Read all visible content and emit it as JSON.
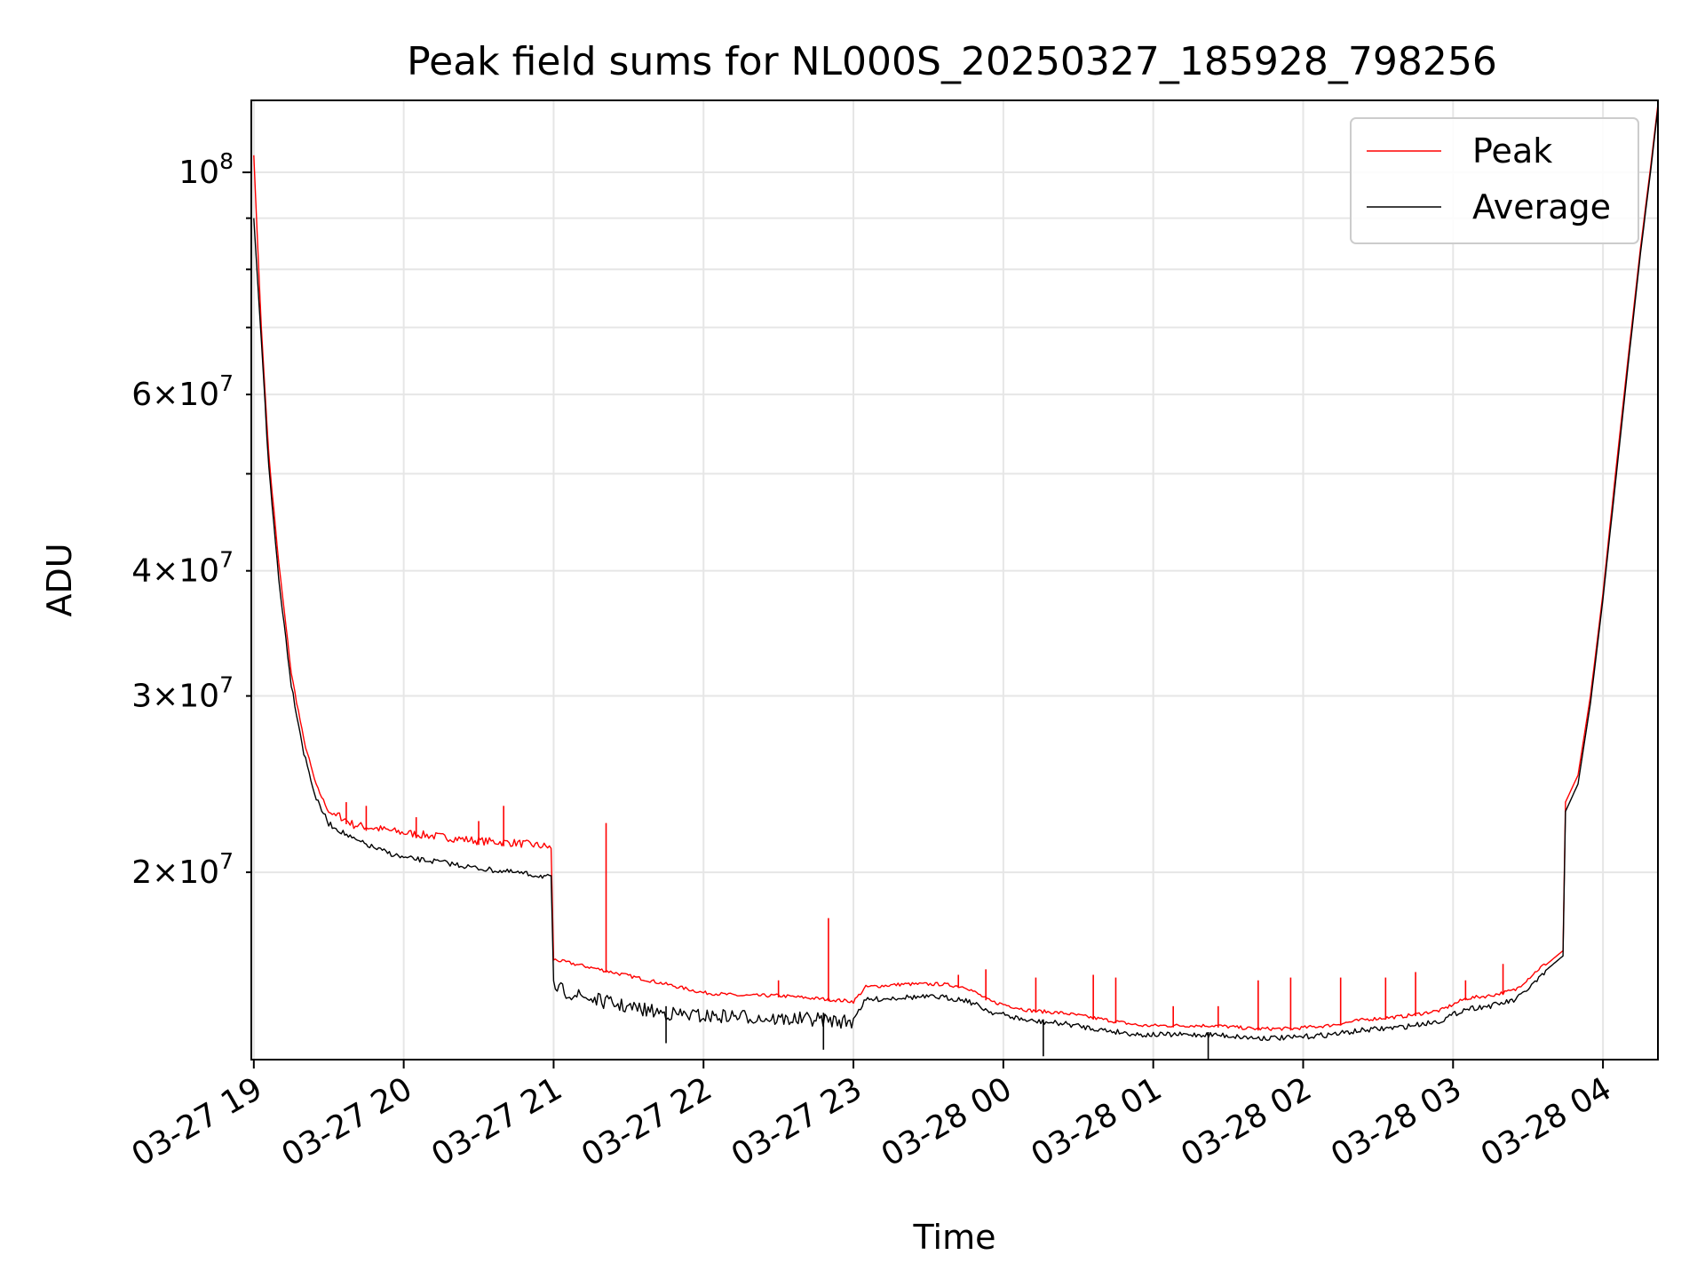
{
  "chart_data": {
    "type": "line",
    "title": "Peak field sums for NL000S_20250327_185928_798256",
    "xlabel": "Time",
    "ylabel": "ADU",
    "x_scale": "time",
    "y_scale": "log",
    "xlim": [
      "2025-03-27 18:59",
      "2025-03-28 04:22"
    ],
    "ylim": [
      13000000,
      118000000
    ],
    "grid": true,
    "legend_position": "upper right",
    "x_ticks": [
      {
        "t": "2025-03-27 19:00",
        "label": "03-27 19"
      },
      {
        "t": "2025-03-27 20:00",
        "label": "03-27 20"
      },
      {
        "t": "2025-03-27 21:00",
        "label": "03-27 21"
      },
      {
        "t": "2025-03-27 22:00",
        "label": "03-27 22"
      },
      {
        "t": "2025-03-27 23:00",
        "label": "03-27 23"
      },
      {
        "t": "2025-03-28 00:00",
        "label": "03-28 00"
      },
      {
        "t": "2025-03-28 01:00",
        "label": "03-28 01"
      },
      {
        "t": "2025-03-28 02:00",
        "label": "03-28 02"
      },
      {
        "t": "2025-03-28 03:00",
        "label": "03-28 03"
      },
      {
        "t": "2025-03-28 04:00",
        "label": "03-28 04"
      }
    ],
    "y_major_ticks": [
      {
        "value": 100000000,
        "base": "10",
        "exp": "8"
      }
    ],
    "y_minor_labeled_ticks": [
      {
        "value": 20000000,
        "mant": "2",
        "base": "10",
        "exp": "7"
      },
      {
        "value": 30000000,
        "mant": "3",
        "base": "10",
        "exp": "7"
      },
      {
        "value": 40000000,
        "mant": "4",
        "base": "10",
        "exp": "7"
      },
      {
        "value": 60000000,
        "mant": "6",
        "base": "10",
        "exp": "7"
      }
    ],
    "y_minor_unlabeled_ticks": [
      50000000,
      70000000,
      80000000,
      90000000
    ],
    "series": [
      {
        "name": "Peak",
        "color": "#ff0000",
        "points": [
          [
            "2025-03-27 19:00",
            104000000
          ],
          [
            "2025-03-27 19:03",
            70000000
          ],
          [
            "2025-03-27 19:06",
            52000000
          ],
          [
            "2025-03-27 19:10",
            40500000
          ],
          [
            "2025-03-27 19:15",
            31500000
          ],
          [
            "2025-03-27 19:20",
            27000000
          ],
          [
            "2025-03-27 19:25",
            24300000
          ],
          [
            "2025-03-27 19:30",
            22900000
          ],
          [
            "2025-03-27 19:40",
            22100000
          ],
          [
            "2025-03-27 19:50",
            21900000
          ],
          [
            "2025-03-27 20:00",
            21700000
          ],
          [
            "2025-03-27 20:15",
            21500000
          ],
          [
            "2025-03-27 20:30",
            21300000
          ],
          [
            "2025-03-27 20:45",
            21200000
          ],
          [
            "2025-03-27 20:59",
            21000000
          ],
          [
            "2025-03-27 21:00",
            16300000
          ],
          [
            "2025-03-27 21:10",
            16100000
          ],
          [
            "2025-03-27 21:20",
            15900000
          ],
          [
            "2025-03-27 21:30",
            15700000
          ],
          [
            "2025-03-27 21:45",
            15400000
          ],
          [
            "2025-03-27 22:00",
            15100000
          ],
          [
            "2025-03-27 22:15",
            15000000
          ],
          [
            "2025-03-27 22:30",
            15000000
          ],
          [
            "2025-03-27 22:45",
            14900000
          ],
          [
            "2025-03-27 23:00",
            14800000
          ],
          [
            "2025-03-27 23:05",
            15300000
          ],
          [
            "2025-03-27 23:20",
            15400000
          ],
          [
            "2025-03-27 23:35",
            15400000
          ],
          [
            "2025-03-27 23:45",
            15300000
          ],
          [
            "2025-03-27 23:55",
            14800000
          ],
          [
            "2025-03-28 00:10",
            14500000
          ],
          [
            "2025-03-28 00:25",
            14400000
          ],
          [
            "2025-03-28 00:40",
            14200000
          ],
          [
            "2025-03-28 00:55",
            14000000
          ],
          [
            "2025-03-28 01:10",
            14000000
          ],
          [
            "2025-03-28 01:25",
            14000000
          ],
          [
            "2025-03-28 01:40",
            13900000
          ],
          [
            "2025-03-28 01:55",
            13900000
          ],
          [
            "2025-03-28 02:10",
            14000000
          ],
          [
            "2025-03-28 02:25",
            14200000
          ],
          [
            "2025-03-28 02:40",
            14300000
          ],
          [
            "2025-03-28 02:55",
            14500000
          ],
          [
            "2025-03-28 03:05",
            14900000
          ],
          [
            "2025-03-28 03:15",
            15000000
          ],
          [
            "2025-03-28 03:25",
            15200000
          ],
          [
            "2025-03-28 03:35",
            16000000
          ],
          [
            "2025-03-28 03:44",
            16700000
          ],
          [
            "2025-03-28 03:45",
            23500000
          ],
          [
            "2025-03-28 03:50",
            25000000
          ],
          [
            "2025-03-28 03:55",
            30000000
          ],
          [
            "2025-03-28 04:00",
            38000000
          ],
          [
            "2025-03-28 04:05",
            50000000
          ],
          [
            "2025-03-28 04:10",
            65000000
          ],
          [
            "2025-03-28 04:15",
            84000000
          ],
          [
            "2025-03-28 04:19",
            101000000
          ],
          [
            "2025-03-28 04:22",
            117000000
          ]
        ]
      },
      {
        "name": "Average",
        "color": "#000000",
        "points": [
          [
            "2025-03-27 19:00",
            90000000
          ],
          [
            "2025-03-27 19:03",
            68000000
          ],
          [
            "2025-03-27 19:06",
            51000000
          ],
          [
            "2025-03-27 19:10",
            39500000
          ],
          [
            "2025-03-27 19:15",
            31000000
          ],
          [
            "2025-03-27 19:20",
            26500000
          ],
          [
            "2025-03-27 19:25",
            23800000
          ],
          [
            "2025-03-27 19:30",
            22500000
          ],
          [
            "2025-03-27 19:40",
            21700000
          ],
          [
            "2025-03-27 19:50",
            21200000
          ],
          [
            "2025-03-27 20:00",
            20800000
          ],
          [
            "2025-03-27 20:15",
            20600000
          ],
          [
            "2025-03-27 20:30",
            20300000
          ],
          [
            "2025-03-27 20:45",
            20100000
          ],
          [
            "2025-03-27 20:59",
            19900000
          ],
          [
            "2025-03-27 21:00",
            15600000
          ],
          [
            "2025-03-27 21:10",
            15300000
          ],
          [
            "2025-03-27 21:20",
            15100000
          ],
          [
            "2025-03-27 21:30",
            14900000
          ],
          [
            "2025-03-27 21:45",
            14700000
          ],
          [
            "2025-03-27 22:00",
            14600000
          ],
          [
            "2025-03-27 22:15",
            14600000
          ],
          [
            "2025-03-27 22:30",
            14500000
          ],
          [
            "2025-03-27 22:45",
            14500000
          ],
          [
            "2025-03-27 23:00",
            14400000
          ],
          [
            "2025-03-27 23:05",
            15000000
          ],
          [
            "2025-03-27 23:20",
            15100000
          ],
          [
            "2025-03-27 23:35",
            15100000
          ],
          [
            "2025-03-27 23:45",
            15000000
          ],
          [
            "2025-03-27 23:55",
            14600000
          ],
          [
            "2025-03-28 00:10",
            14300000
          ],
          [
            "2025-03-28 00:25",
            14200000
          ],
          [
            "2025-03-28 00:40",
            14000000
          ],
          [
            "2025-03-28 00:55",
            13850000
          ],
          [
            "2025-03-28 01:10",
            13850000
          ],
          [
            "2025-03-28 01:25",
            13850000
          ],
          [
            "2025-03-28 01:40",
            13750000
          ],
          [
            "2025-03-28 01:55",
            13750000
          ],
          [
            "2025-03-28 02:10",
            13850000
          ],
          [
            "2025-03-28 02:25",
            14000000
          ],
          [
            "2025-03-28 02:40",
            14100000
          ],
          [
            "2025-03-28 02:55",
            14300000
          ],
          [
            "2025-03-28 03:05",
            14700000
          ],
          [
            "2025-03-28 03:15",
            14800000
          ],
          [
            "2025-03-28 03:25",
            15000000
          ],
          [
            "2025-03-28 03:35",
            15800000
          ],
          [
            "2025-03-28 03:44",
            16500000
          ],
          [
            "2025-03-28 03:45",
            23000000
          ],
          [
            "2025-03-28 03:50",
            24500000
          ],
          [
            "2025-03-28 03:55",
            29500000
          ],
          [
            "2025-03-28 04:00",
            37500000
          ],
          [
            "2025-03-28 04:05",
            49000000
          ],
          [
            "2025-03-28 04:10",
            64000000
          ],
          [
            "2025-03-28 04:15",
            83000000
          ],
          [
            "2025-03-28 04:19",
            100000000
          ],
          [
            "2025-03-28 04:22",
            116000000
          ]
        ]
      }
    ],
    "peak_spikes": [
      [
        "2025-03-27 19:37",
        23500000
      ],
      [
        "2025-03-27 19:45",
        23300000
      ],
      [
        "2025-03-27 20:05",
        22700000
      ],
      [
        "2025-03-27 20:30",
        22500000
      ],
      [
        "2025-03-27 20:40",
        23300000
      ],
      [
        "2025-03-27 21:21",
        22400000
      ],
      [
        "2025-03-27 22:30",
        15600000
      ],
      [
        "2025-03-27 22:50",
        18000000
      ],
      [
        "2025-03-27 23:42",
        15800000
      ],
      [
        "2025-03-27 23:53",
        16000000
      ],
      [
        "2025-03-28 00:13",
        15700000
      ],
      [
        "2025-03-28 00:36",
        15800000
      ],
      [
        "2025-03-28 00:45",
        15700000
      ],
      [
        "2025-03-28 01:08",
        14700000
      ],
      [
        "2025-03-28 01:26",
        14700000
      ],
      [
        "2025-03-28 01:42",
        15600000
      ],
      [
        "2025-03-28 01:55",
        15700000
      ],
      [
        "2025-03-28 02:15",
        15700000
      ],
      [
        "2025-03-28 02:33",
        15700000
      ],
      [
        "2025-03-28 02:45",
        15900000
      ],
      [
        "2025-03-28 03:05",
        15600000
      ],
      [
        "2025-03-28 03:20",
        16200000
      ]
    ],
    "average_dips": [
      [
        "2025-03-27 21:45",
        13500000
      ],
      [
        "2025-03-27 22:48",
        13300000
      ],
      [
        "2025-03-28 00:16",
        13100000
      ],
      [
        "2025-03-28 01:22",
        12950000
      ]
    ]
  }
}
